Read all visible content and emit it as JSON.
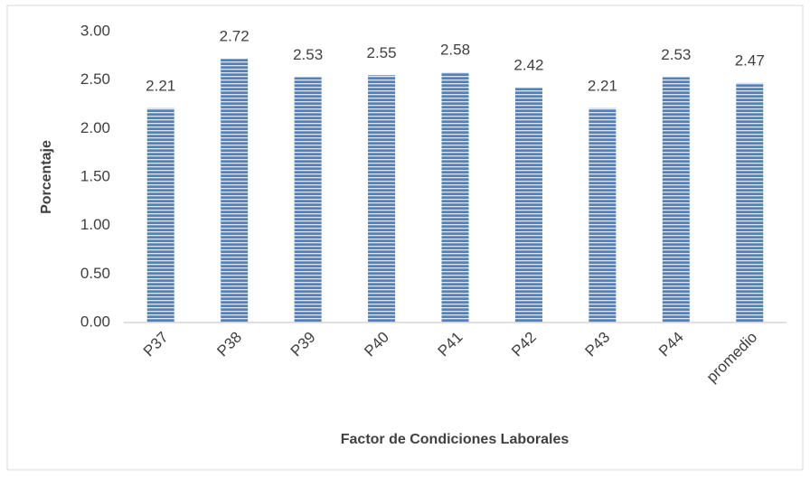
{
  "chart_data": {
    "type": "bar",
    "x_label": "Factor de Condiciones Laborales",
    "y_label": "Porcentaje",
    "categories": [
      "P37",
      "P38",
      "P39",
      "P40",
      "P41",
      "P42",
      "P43",
      "P44",
      "promedio"
    ],
    "values": [
      2.21,
      2.72,
      2.53,
      2.55,
      2.58,
      2.42,
      2.21,
      2.53,
      2.47
    ],
    "color": "#4f81bd",
    "ylim": [
      0,
      3
    ],
    "yticks": [
      {
        "value": 0,
        "label": "0.00"
      },
      {
        "value": 0.5,
        "label": "0.50"
      },
      {
        "value": 1,
        "label": "1.00"
      },
      {
        "value": 1.5,
        "label": "1.50"
      },
      {
        "value": 2,
        "label": "2.00"
      },
      {
        "value": 2.5,
        "label": "2.50"
      },
      {
        "value": 3,
        "label": "3.00"
      }
    ],
    "grid": false
  }
}
